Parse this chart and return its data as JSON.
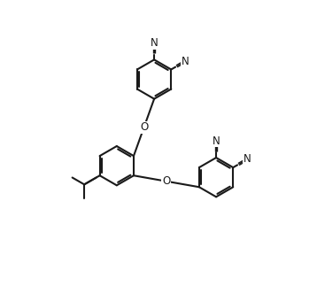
{
  "bg": "#ffffff",
  "lc": "#1a1a1a",
  "lw": 1.5,
  "fs": 8.5,
  "figsize": [
    3.58,
    3.32
  ],
  "dpi": 100,
  "xlim": [
    -0.5,
    10.5
  ],
  "ylim": [
    -0.3,
    9.7
  ]
}
